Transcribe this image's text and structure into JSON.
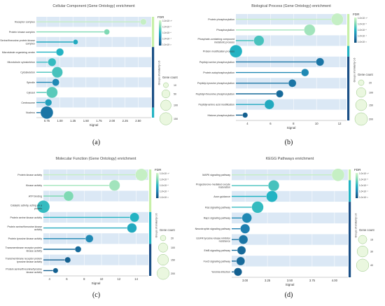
{
  "captions": [
    "(a)",
    "(b)",
    "(c)",
    "(d)"
  ],
  "common": {
    "fdr_title": "FDR",
    "gene_count_title": "Gene count",
    "groups_label": "Groups of similarity 0.6",
    "fdr_labels": [
      "1.0×10⁻¹⁰",
      "1.0×10⁻⁸",
      "1.0×10⁻⁶",
      "1.0×10⁻⁴",
      "1.0×10⁻²"
    ],
    "colors": {
      "fdr_low": "#0b4b7a",
      "fdr_high": "#d7f5c8",
      "band_light": "#dbe8f5",
      "band_white": "#ffffff",
      "bar_green": "#c7f0a8",
      "bar_teal": "#23b3c3",
      "bar_navy": "#1a4f86"
    }
  },
  "chart_data": [
    {
      "type": "scatter",
      "title": "Cellular Component (Gene Ontology) enrichment",
      "xlabel": "Signal",
      "xlim": [
        0.55,
        2.75
      ],
      "xticks": [
        0.75,
        1.0,
        1.25,
        1.5,
        1.75,
        2.0,
        2.25,
        2.5
      ],
      "xtick_labels": [
        "0.75",
        "1.00",
        "1.25",
        "1.50",
        "1.75",
        "2.00",
        "2.25",
        "2.50"
      ],
      "terms": [
        "Receptor complex",
        "Protein kinase complex",
        "Serine/threonine protein kinase complex",
        "Microtubule organizing center",
        "Microtubule cytoskeleton",
        "Cytoskeleton",
        "Spindle",
        "Cytosol",
        "Centrosome",
        "Nucleus"
      ],
      "signal": [
        2.6,
        1.9,
        1.3,
        1.0,
        0.85,
        0.95,
        0.92,
        0.85,
        0.78,
        0.75
      ],
      "gene_count": [
        20,
        15,
        10,
        40,
        50,
        110,
        35,
        120,
        30,
        160
      ],
      "fdr_level": [
        0.95,
        0.75,
        0.45,
        0.5,
        0.55,
        0.6,
        0.3,
        0.65,
        0.4,
        0.2
      ],
      "size_legend": [
        "10",
        "50",
        "100",
        "150"
      ],
      "size_values": [
        10,
        50,
        100,
        150
      ],
      "groups": [
        {
          "rows": 3,
          "color": "#c7f0a8"
        },
        {
          "rows": 6,
          "color": "#1a4f86"
        },
        {
          "rows": 1,
          "color": "#23b3c3"
        }
      ]
    },
    {
      "type": "scatter",
      "title": "Biological Process (Gene Ontology) enrichment",
      "xlabel": "Signal",
      "xlim": [
        3.0,
        12.6
      ],
      "xticks": [
        4,
        6,
        8,
        10,
        12
      ],
      "xtick_labels": [
        "4",
        "6",
        "8",
        "10",
        "12"
      ],
      "terms": [
        "Protein phosphorylation",
        "Phosphorylation",
        "Phosphate-containing compound metabolic process",
        "Protein modification process",
        "Peptidyl-serine phosphorylation",
        "Protein autophosphorylation",
        "Peptidyl-tyrosine phosphorylation",
        "Peptidyl-threonine phosphorylation",
        "Peptidyl-amino acid modification",
        "Histone phosphorylation"
      ],
      "signal": [
        11.8,
        9.4,
        5.0,
        3.0,
        10.3,
        9.0,
        7.9,
        6.8,
        5.9,
        3.8
      ],
      "gene_count": [
        180,
        150,
        120,
        200,
        60,
        50,
        55,
        45,
        100,
        15
      ],
      "fdr_level": [
        0.95,
        0.85,
        0.6,
        0.5,
        0.2,
        0.3,
        0.2,
        0.15,
        0.45,
        0.1
      ],
      "size_legend": [
        "20",
        "100",
        "150",
        "200"
      ],
      "size_values": [
        20,
        100,
        150,
        200
      ],
      "groups": [
        {
          "rows": 3,
          "color": "#c7f0a8"
        },
        {
          "rows": 1,
          "color": "#23b3c3"
        },
        {
          "rows": 6,
          "color": "#1a4f86"
        }
      ]
    },
    {
      "type": "scatter",
      "title": "Molecular Function (Gene Ontology) enrichment",
      "xlabel": "Signal",
      "xlim": [
        3.3,
        15.4
      ],
      "xticks": [
        4,
        6,
        8,
        10,
        12,
        14
      ],
      "xtick_labels": [
        "4",
        "6",
        "8",
        "10",
        "12",
        "14"
      ],
      "terms": [
        "Protein kinase activity",
        "Kinase activity",
        "ATP binding",
        "Catalytic activity, acting on a protein",
        "Protein serine kinase activity",
        "Protein serine/threonine kinase activity",
        "Protein tyrosine kinase activity",
        "Transmembrane receptor protein kinase activity",
        "Transmembrane receptor protein tyrosine kinase activity",
        "Protein serine/threonine/tyrosine kinase activity"
      ],
      "signal": [
        14.6,
        11.5,
        6.2,
        3.3,
        13.8,
        13.5,
        8.6,
        7.3,
        6.1,
        4.7
      ],
      "gene_count": [
        200,
        150,
        120,
        220,
        100,
        110,
        60,
        30,
        25,
        15
      ],
      "fdr_level": [
        0.95,
        0.85,
        0.75,
        0.55,
        0.5,
        0.45,
        0.3,
        0.15,
        0.1,
        0.1
      ],
      "size_legend": [
        "20",
        "100",
        "150",
        "200"
      ],
      "size_values": [
        20,
        100,
        150,
        200
      ],
      "groups": [
        {
          "rows": 4,
          "color": "#c7f0a8"
        },
        {
          "rows": 3,
          "color": "#23b3c3"
        },
        {
          "rows": 3,
          "color": "#1a4f86"
        }
      ]
    },
    {
      "type": "scatter",
      "title": "KEGG Pathways enrichment",
      "xlabel": "Signal",
      "xlim": [
        2.85,
        4.15
      ],
      "xticks": [
        3.0,
        3.25,
        3.5,
        3.75,
        4.0
      ],
      "xtick_labels": [
        "3.00",
        "3.25",
        "3.50",
        "3.75",
        "4.00"
      ],
      "terms": [
        "MAPK signaling pathway",
        "Progesterone-mediated oocyte maturation",
        "Axon guidance",
        "Ras signaling pathway",
        "Rap1 signaling pathway",
        "Neurotrophin signaling pathway",
        "EGFR tyrosine kinase inhibitor resistance",
        "ErbB signaling pathway",
        "FoxO signaling pathway",
        "Yersinia infection"
      ],
      "signal": [
        4.04,
        3.32,
        3.3,
        3.14,
        3.02,
        3.0,
        2.98,
        2.96,
        2.95,
        2.92
      ],
      "gene_count": [
        42,
        30,
        32,
        35,
        22,
        20,
        18,
        15,
        15,
        13
      ],
      "fdr_level": [
        0.95,
        0.6,
        0.5,
        0.55,
        0.3,
        0.25,
        0.2,
        0.15,
        0.15,
        0.1
      ],
      "size_legend": [
        "15",
        "30",
        "40"
      ],
      "size_values": [
        15,
        30,
        40
      ],
      "groups": [
        {
          "rows": 1,
          "color": "#c7f0a8"
        },
        {
          "rows": 2,
          "color": "#23b3c3"
        },
        {
          "rows": 7,
          "color": "#1a4f86"
        }
      ]
    }
  ]
}
